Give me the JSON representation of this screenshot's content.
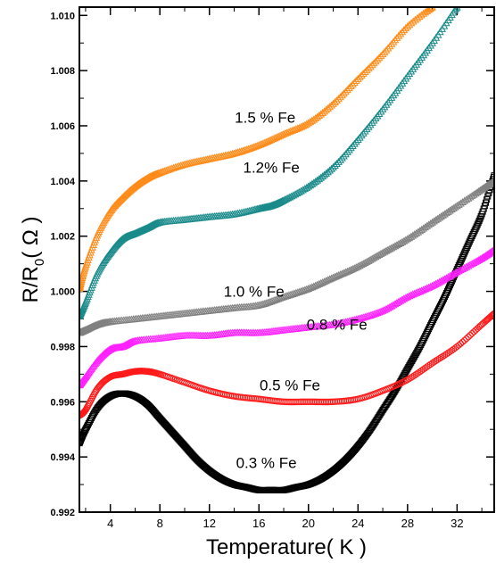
{
  "chart_data": {
    "type": "scatter",
    "xlabel": "Temperature( K )",
    "ylabel_main": "R/R",
    "ylabel_sub": "0",
    "ylabel_tail": "( Ω )",
    "xlim": [
      1.5,
      35
    ],
    "ylim": [
      0.992,
      1.0103
    ],
    "xticks": [
      4,
      8,
      12,
      16,
      20,
      24,
      28,
      32
    ],
    "yticks": [
      "0.992",
      "0.994",
      "0.996",
      "0.998",
      "1.000",
      "1.002",
      "1.004",
      "1.006",
      "1.008",
      "1.010"
    ],
    "series": [
      {
        "name": "0.3 % Fe",
        "color": "#000000",
        "marker": "square",
        "x": [
          1.5,
          2,
          3,
          4,
          5,
          6,
          7,
          8,
          9,
          10,
          11,
          12,
          13,
          14,
          15,
          16,
          17,
          18,
          19,
          20,
          21,
          22,
          23,
          24,
          25,
          26,
          27,
          28,
          29,
          30,
          31,
          32,
          33,
          34,
          35
        ],
        "y": [
          0.9945,
          0.995,
          0.9958,
          0.9962,
          0.9963,
          0.9962,
          0.9959,
          0.9954,
          0.9949,
          0.9944,
          0.9939,
          0.9935,
          0.9932,
          0.993,
          0.9929,
          0.9928,
          0.9928,
          0.9928,
          0.9929,
          0.993,
          0.9932,
          0.9935,
          0.9939,
          0.9944,
          0.995,
          0.9957,
          0.9964,
          0.9972,
          0.998,
          0.9989,
          0.9998,
          1.0008,
          1.0018,
          1.0028,
          1.0042
        ]
      },
      {
        "name": "0.5 % Fe",
        "color": "#ff1a1a",
        "marker": "circle",
        "x": [
          1.5,
          2,
          3,
          4,
          5,
          6,
          7,
          8,
          10,
          12,
          14,
          16,
          18,
          20,
          22,
          24,
          26,
          28,
          30,
          32,
          34,
          35
        ],
        "y": [
          0.9955,
          0.9957,
          0.9965,
          0.9969,
          0.997,
          0.9971,
          0.9971,
          0.997,
          0.9967,
          0.9964,
          0.9962,
          0.9961,
          0.996,
          0.996,
          0.996,
          0.9961,
          0.9964,
          0.9968,
          0.9974,
          0.998,
          0.9988,
          0.9992
        ]
      },
      {
        "name": "0.8 % Fe",
        "color": "#ff22ff",
        "marker": "triangle",
        "x": [
          1.5,
          2,
          3,
          4,
          5,
          6,
          8,
          10,
          12,
          14,
          16,
          18,
          20,
          22,
          24,
          26,
          28,
          30,
          32,
          34,
          35
        ],
        "y": [
          0.9966,
          0.9969,
          0.9975,
          0.9979,
          0.998,
          0.9982,
          0.9983,
          0.9984,
          0.9984,
          0.9985,
          0.9985,
          0.9986,
          0.9987,
          0.9988,
          0.999,
          0.9993,
          0.9998,
          1.0002,
          1.0007,
          1.0012,
          1.0015
        ]
      },
      {
        "name": "1.0 % Fe",
        "color": "#808080",
        "marker": "triangle",
        "x": [
          1.5,
          2,
          3,
          4,
          6,
          8,
          10,
          12,
          14,
          16,
          18,
          20,
          22,
          24,
          26,
          28,
          30,
          32,
          34,
          35
        ],
        "y": [
          0.9985,
          0.9986,
          0.9988,
          0.9989,
          0.999,
          0.9991,
          0.9992,
          0.9993,
          0.9994,
          0.9995,
          0.9998,
          1.0001,
          1.0005,
          1.0009,
          1.0014,
          1.0019,
          1.0025,
          1.0031,
          1.0037,
          1.004
        ]
      },
      {
        "name": "1.2% Fe",
        "color": "#1a8a8a",
        "marker": "triangle",
        "x": [
          1.5,
          2,
          3,
          4,
          5,
          6,
          7,
          8,
          10,
          12,
          14,
          16,
          17,
          18,
          20,
          22,
          24,
          26,
          28,
          30,
          32
        ],
        "y": [
          0.9991,
          0.9996,
          1.0007,
          1.0014,
          1.0019,
          1.0021,
          1.0023,
          1.0025,
          1.0026,
          1.0027,
          1.0028,
          1.003,
          1.0031,
          1.0033,
          1.0038,
          1.0045,
          1.0055,
          1.0066,
          1.0078,
          1.009,
          1.0103
        ]
      },
      {
        "name": "1.5 % Fe",
        "color": "#ff8c1a",
        "marker": "triangle",
        "x": [
          1.5,
          2,
          3,
          4,
          5,
          6,
          7,
          8,
          10,
          12,
          14,
          16,
          18,
          20,
          22,
          24,
          26,
          28,
          30
        ],
        "y": [
          1.0001,
          1.0009,
          1.0021,
          1.0029,
          1.0034,
          1.0038,
          1.0041,
          1.0043,
          1.0046,
          1.0048,
          1.005,
          1.0053,
          1.0057,
          1.0061,
          1.0068,
          1.0077,
          1.0086,
          1.0096,
          1.0103
        ]
      }
    ],
    "annotations": [
      {
        "text": "1.5 % Fe",
        "x": 16.5,
        "y": 1.0063
      },
      {
        "text": "1.2% Fe",
        "x": 17.0,
        "y": 1.0045
      },
      {
        "text": "1.0 % Fe",
        "x": 15.6,
        "y": 1.0
      },
      {
        "text": "0.8 % Fe",
        "x": 22.3,
        "y": 0.9988
      },
      {
        "text": "0.5 % Fe",
        "x": 18.5,
        "y": 0.9966
      },
      {
        "text": "0.3 % Fe",
        "x": 16.6,
        "y": 0.9938
      }
    ]
  }
}
